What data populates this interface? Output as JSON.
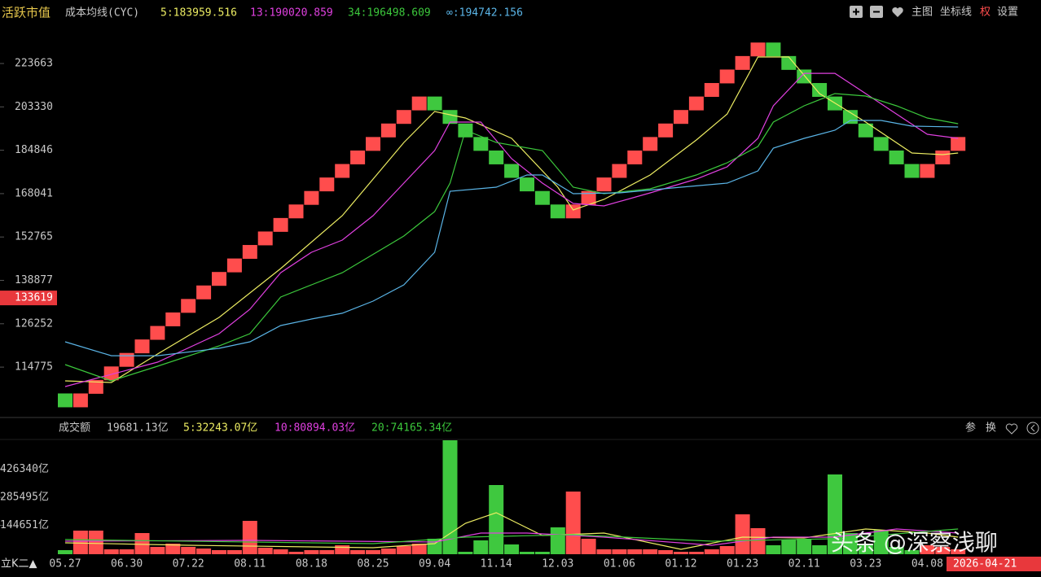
{
  "chart_data": [
    {
      "type": "renko",
      "title": "活跃市值",
      "subtitle": "成本均线(CYC)",
      "log_scale": true,
      "ylim": [
        104230,
        243720
      ],
      "yticks": [
        223663,
        203330,
        184846,
        168041,
        152765,
        138877,
        126252,
        114775
      ],
      "current_value": 133619,
      "period_label": "立K二▲",
      "cursor_date": "2026-04-21",
      "categories": [
        "05.27",
        null,
        null,
        null,
        "06.30",
        null,
        null,
        null,
        "07.22",
        null,
        null,
        null,
        "08.11",
        null,
        null,
        null,
        "08.18",
        null,
        null,
        null,
        "08.25",
        null,
        null,
        null,
        "09.04",
        null,
        null,
        null,
        "11.14",
        null,
        null,
        null,
        "12.03",
        null,
        null,
        null,
        "01.06",
        null,
        null,
        null,
        "01.12",
        null,
        null,
        null,
        "01.23",
        null,
        null,
        null,
        "02.11",
        null,
        null,
        null,
        "03.23",
        null,
        null,
        null,
        "04.08",
        null,
        null
      ],
      "bricks": {
        "up_color": "#ff4d4d",
        "down_color": "#3fc83f",
        "values": [
          106690,
          106690,
          109901,
          113209,
          116617,
          120127,
          123743,
          127468,
          131305,
          135257,
          139328,
          143522,
          147842,
          152292,
          156876,
          161598,
          166462,
          171473,
          176634,
          181951,
          187428,
          193069,
          198881,
          204867,
          204867,
          198881,
          193069,
          187428,
          181951,
          176634,
          171473,
          166462,
          161598,
          161598,
          166462,
          171473,
          176634,
          181951,
          187428,
          193069,
          198881,
          204867,
          211034,
          217386,
          223929,
          230669,
          230669,
          223929,
          217386,
          211034,
          204867,
          198881,
          193069,
          187428,
          181951,
          176634,
          176634,
          181951,
          187428
        ],
        "up": [
          false,
          true,
          true,
          true,
          true,
          true,
          true,
          true,
          true,
          true,
          true,
          true,
          true,
          true,
          true,
          true,
          true,
          true,
          true,
          true,
          true,
          true,
          true,
          true,
          false,
          false,
          false,
          false,
          false,
          false,
          false,
          false,
          false,
          true,
          true,
          true,
          true,
          true,
          true,
          true,
          true,
          true,
          true,
          true,
          true,
          true,
          false,
          false,
          false,
          false,
          false,
          false,
          false,
          false,
          false,
          false,
          true,
          true,
          true
        ]
      },
      "series": [
        {
          "name": "5:183959.516",
          "color": "#ecec62",
          "x": [
            0,
            3,
            6,
            10,
            14,
            18,
            22,
            24,
            26,
            29,
            32,
            33,
            35,
            38,
            41,
            43,
            45,
            47,
            49,
            52,
            55,
            57,
            58
          ],
          "values": [
            111360,
            110960,
            118120,
            128030,
            142520,
            160100,
            188030,
            201270,
            198410,
            189730,
            170430,
            162110,
            165940,
            175060,
            189060,
            200180,
            226880,
            226880,
            209350,
            196650,
            183720,
            183070,
            183720
          ]
        },
        {
          "name": "13:190020.859",
          "color": "#e040e0",
          "x": [
            0,
            6,
            10,
            12,
            14,
            16,
            18,
            20,
            22,
            24,
            25,
            27,
            29,
            31,
            33,
            35,
            38,
            41,
            43,
            45,
            46,
            48,
            50,
            52,
            54,
            56,
            58
          ],
          "values": [
            109970,
            116030,
            123530,
            130330,
            141240,
            147710,
            151730,
            160100,
            171970,
            184720,
            196650,
            196650,
            181430,
            171970,
            164440,
            163560,
            168330,
            173520,
            178220,
            189730,
            203800,
            218900,
            218900,
            209350,
            200180,
            191430,
            189730
          ]
        },
        {
          "name": "34:196498.609",
          "color": "#3cc83c",
          "x": [
            0,
            3,
            6,
            10,
            12,
            14,
            16,
            18,
            22,
            24,
            25,
            26,
            28,
            31,
            33,
            35,
            38,
            41,
            43,
            45,
            46,
            48,
            50,
            52,
            54,
            56,
            58
          ],
          "values": [
            115410,
            111360,
            115000,
            120260,
            123530,
            133880,
            137510,
            141240,
            153100,
            161530,
            171970,
            193150,
            188030,
            184720,
            170430,
            168020,
            169830,
            175060,
            179820,
            186380,
            196650,
            203800,
            209350,
            208230,
            203800,
            198410,
            195950
          ]
        },
        {
          "name": "∞:194742.156",
          "color": "#5ab4e6",
          "x": [
            0,
            3,
            6,
            10,
            12,
            14,
            16,
            18,
            20,
            22,
            24,
            25,
            28,
            30,
            31,
            33,
            36,
            40,
            43,
            45,
            46,
            48,
            50,
            51,
            53,
            55,
            58
          ],
          "values": [
            121340,
            117690,
            117690,
            119610,
            121340,
            125770,
            127580,
            129190,
            132680,
            137510,
            147710,
            168930,
            170430,
            175060,
            175060,
            168020,
            168330,
            170430,
            171970,
            176650,
            185710,
            189730,
            193150,
            197340,
            197340,
            194900,
            194540
          ]
        }
      ]
    },
    {
      "type": "volume_bar",
      "title": "成交额",
      "current_label": "19681.13亿",
      "ylim": [
        0,
        571550
      ],
      "yticks": [
        {
          "value": 426340,
          "label": "426340亿"
        },
        {
          "value": 285495,
          "label": "285495亿"
        },
        {
          "value": 144651,
          "label": "144651亿"
        }
      ],
      "values": [
        20410,
        118390,
        118390,
        24500,
        24500,
        106150,
        36740,
        53070,
        36740,
        28580,
        20410,
        20410,
        167380,
        32660,
        24500,
        12250,
        20410,
        20410,
        44910,
        20410,
        20410,
        28580,
        40830,
        53070,
        77570,
        571550,
        12250,
        69400,
        347010,
        48990,
        12250,
        12250,
        134720,
        314350,
        77570,
        24500,
        24500,
        24500,
        24500,
        20410,
        12250,
        12250,
        24500,
        40830,
        200040,
        130640,
        44910,
        73490,
        77570,
        44910,
        400090,
        106150,
        53070,
        122480,
        36740,
        20410,
        44910,
        36740,
        24500
      ],
      "series": [
        {
          "name": "5:32243.07亿",
          "color": "#ecec62",
          "x": [
            0,
            8,
            20,
            24,
            26,
            28,
            31,
            35,
            40,
            44,
            48,
            52,
            56,
            58
          ],
          "values": [
            57160,
            44910,
            32660,
            53070,
            155140,
            208210,
            93900,
            106150,
            24500,
            85730,
            81650,
            126560,
            106150,
            85730
          ]
        },
        {
          "name": "10:80894.03亿",
          "color": "#e040e0",
          "x": [
            0,
            12,
            24,
            27,
            30,
            35,
            42,
            46,
            50,
            54,
            58
          ],
          "values": [
            65320,
            69400,
            61240,
            106150,
            106150,
            85730,
            44910,
            85730,
            85730,
            126560,
            106150
          ]
        },
        {
          "name": "20:74165.34亿",
          "color": "#3cc83c",
          "x": [
            0,
            20,
            26,
            33,
            42,
            50,
            58
          ],
          "values": [
            73490,
            53070,
            85730,
            97980,
            65320,
            77570,
            126560
          ]
        }
      ]
    }
  ],
  "toolbar": [
    "主图",
    "坐标线",
    "权",
    "设置"
  ],
  "volume_toolbar": [
    "参",
    "换"
  ],
  "watermark": "头条 @深察浅聊"
}
